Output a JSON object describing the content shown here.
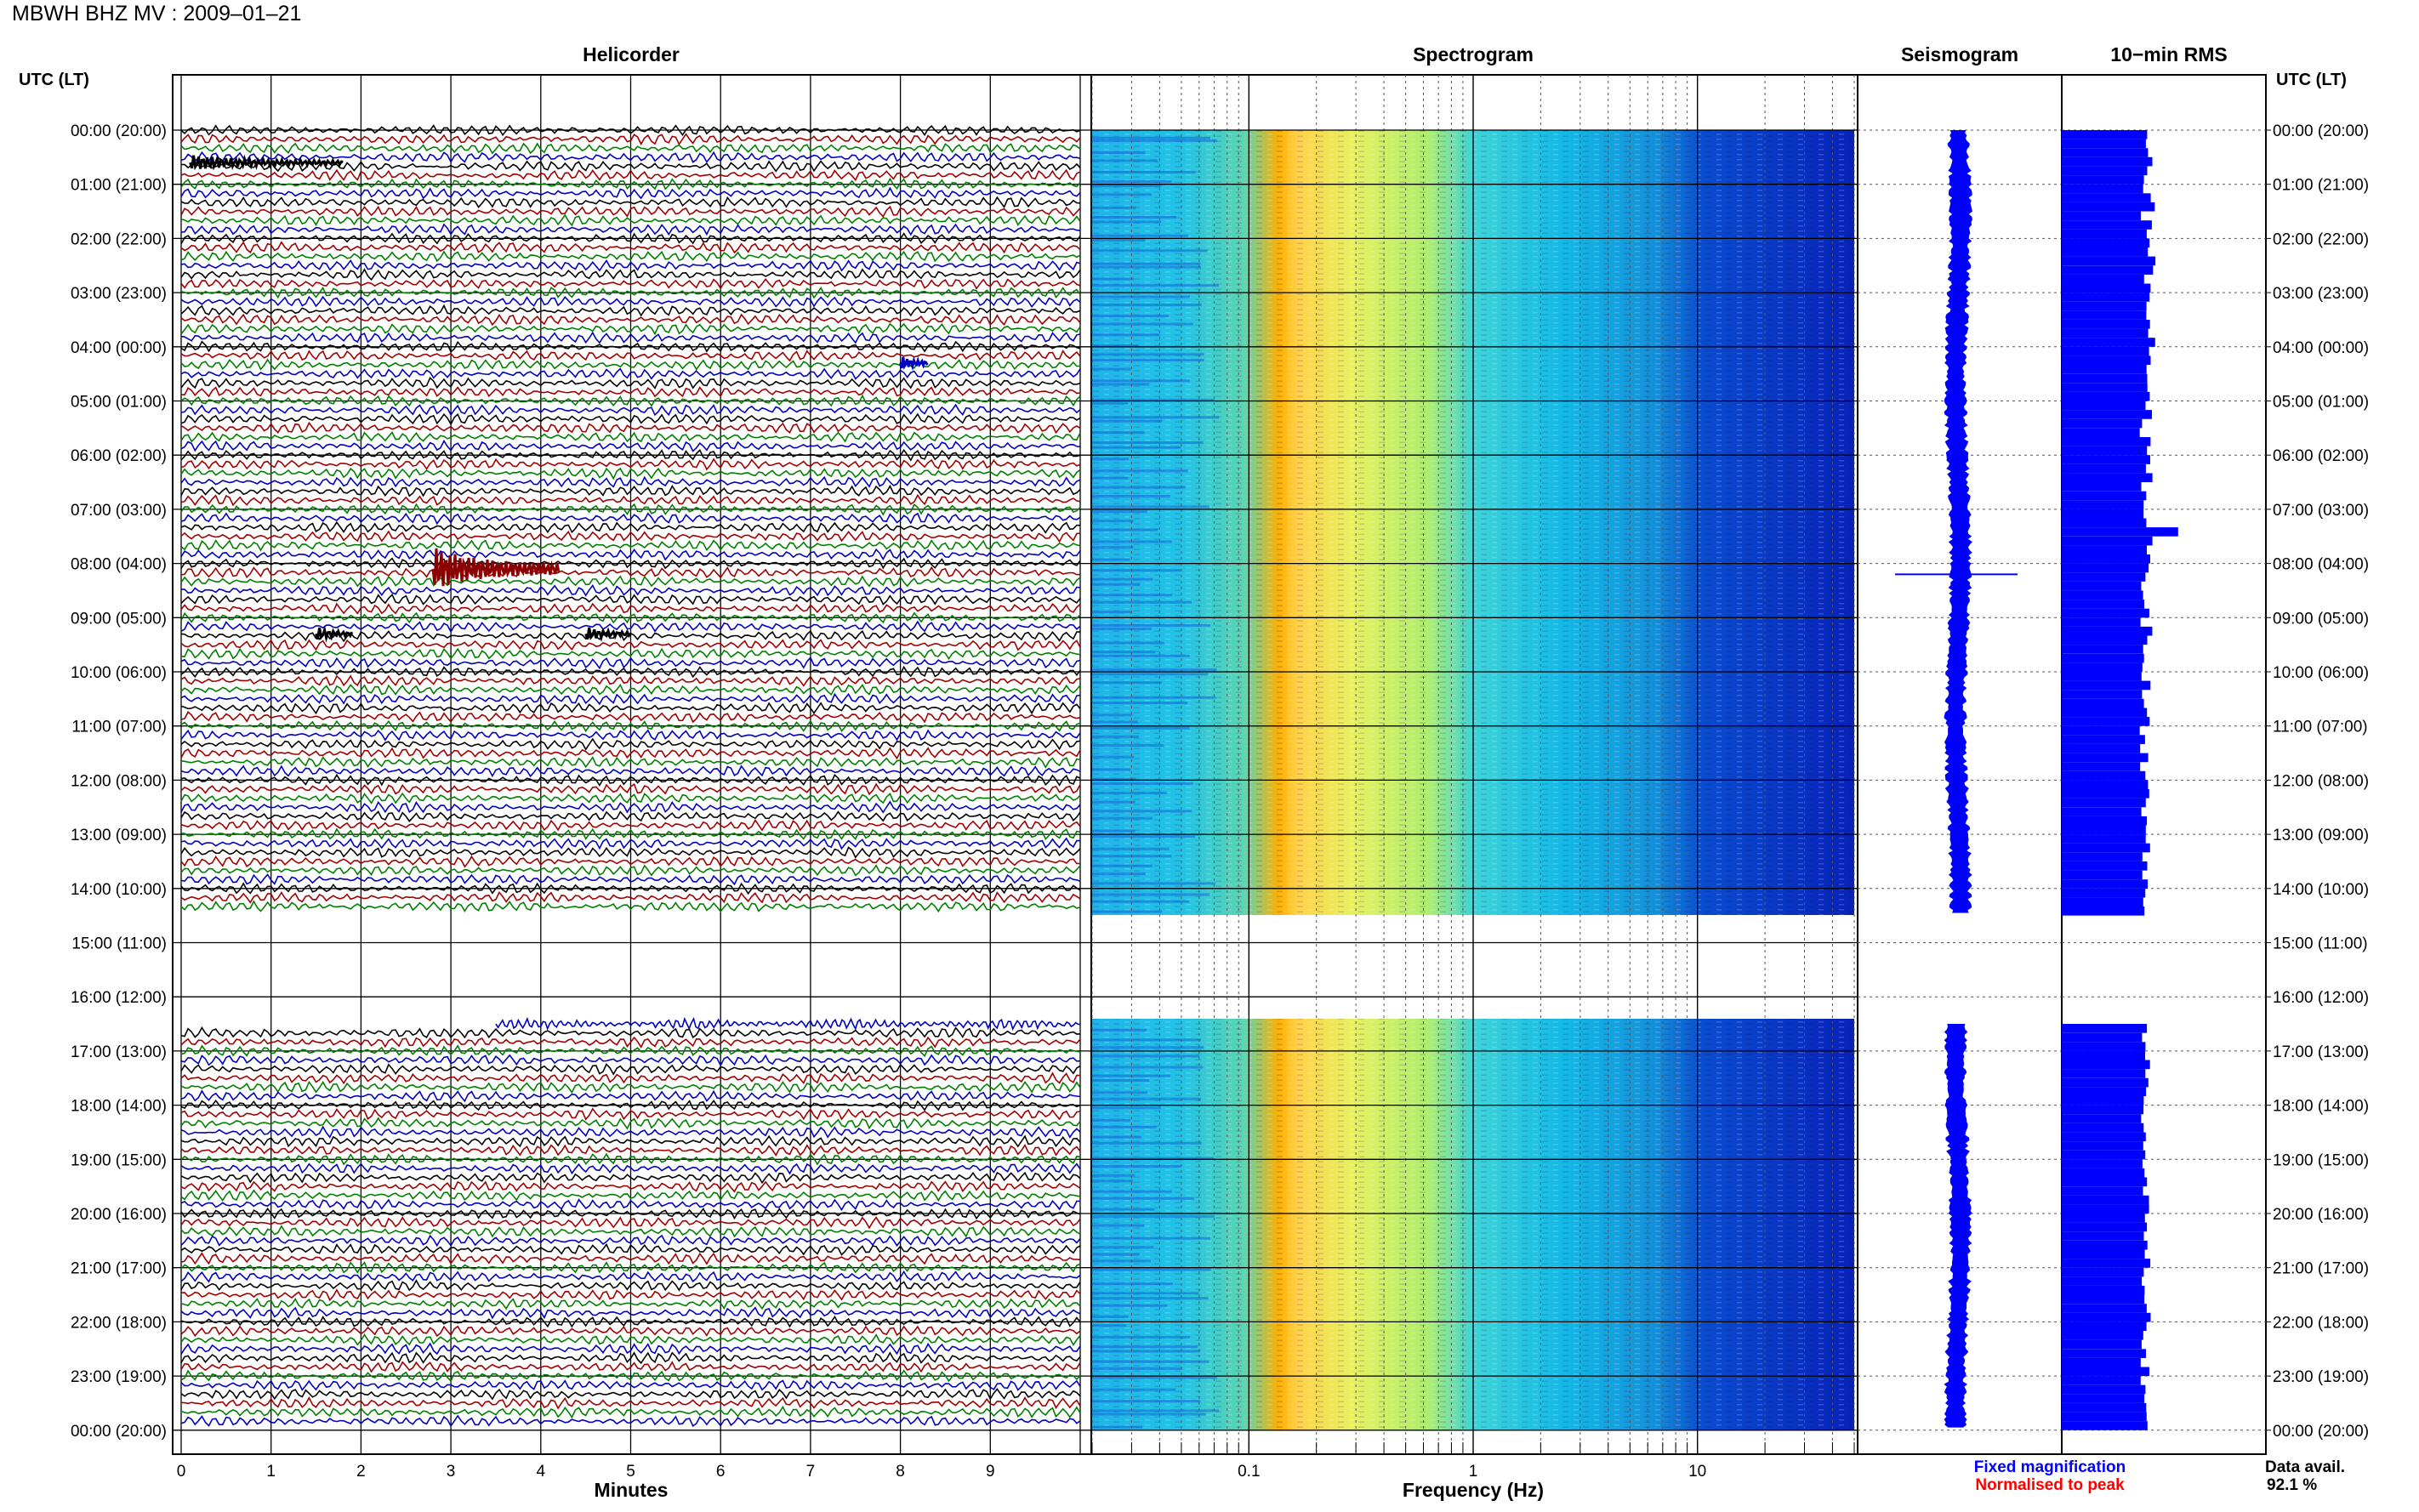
{
  "chart_data": {
    "type": "helicorder",
    "title": "MBWH BHZ MV : 2009–01–21",
    "panels": {
      "helicorder": "Helicorder",
      "spectrogram": "Spectrogram",
      "seismogram": "Seismogram",
      "rms": "10−min RMS"
    },
    "time_axis_title": "UTC (LT)",
    "time_labels": [
      "00:00 (20:00)",
      "01:00 (21:00)",
      "02:00 (22:00)",
      "03:00 (23:00)",
      "04:00 (00:00)",
      "05:00 (01:00)",
      "06:00 (02:00)",
      "07:00 (03:00)",
      "08:00 (04:00)",
      "09:00 (05:00)",
      "10:00 (06:00)",
      "11:00 (07:00)",
      "12:00 (08:00)",
      "13:00 (09:00)",
      "14:00 (10:00)",
      "15:00 (11:00)",
      "16:00 (12:00)",
      "17:00 (13:00)",
      "18:00 (14:00)",
      "19:00 (15:00)",
      "20:00 (16:00)",
      "21:00 (17:00)",
      "22:00 (18:00)",
      "23:00 (19:00)",
      "00:00 (20:00)"
    ],
    "data_gap_hours": [
      14.5,
      16.5
    ],
    "helicorder_x": {
      "label": "Minutes",
      "ticks": [
        "0",
        "1",
        "2",
        "3",
        "4",
        "5",
        "6",
        "7",
        "8",
        "9"
      ],
      "range": [
        0,
        10
      ]
    },
    "spectrogram_x": {
      "label": "Frequency (Hz)",
      "ticks": [
        "0.1",
        "1",
        "10"
      ],
      "scale": "log",
      "range": [
        0.02,
        50
      ]
    },
    "trace_colors": [
      "#000000",
      "#a00000",
      "#008000",
      "#0000c0"
    ],
    "events": [
      {
        "hour": 0.6,
        "minute_start": 0.1,
        "minute_end": 1.8,
        "color": "#000000"
      },
      {
        "hour": 4.3,
        "minute_start": 8.0,
        "minute_end": 8.3,
        "color": "#0000c0"
      },
      {
        "hour": 8.1,
        "minute_start": 2.8,
        "minute_end": 4.2,
        "color": "#8b0000"
      },
      {
        "hour": 9.3,
        "minute_start": 1.5,
        "minute_end": 1.9,
        "color": "#000000"
      },
      {
        "hour": 9.3,
        "minute_start": 4.5,
        "minute_end": 5.0,
        "color": "#000000"
      }
    ],
    "seismogram_spike_hour": 8.2,
    "rms_relative": [
      0.55,
      0.55,
      0.6,
      0.62,
      0.55,
      0.58,
      0.57,
      0.56,
      0.6,
      0.55,
      0.58,
      0.6,
      0.57,
      0.59,
      0.6,
      0.58,
      0.55,
      0.56,
      0.57,
      0.55,
      0.58,
      0.56,
      0.55,
      0.6,
      0.55,
      0.57,
      0.58,
      0.56,
      0.55,
      0.58,
      0.55,
      0.57,
      0.56,
      0.55,
      0.58,
      0.55,
      0.56,
      0.55,
      0.57,
      0.55,
      0.56,
      0.55,
      0.56,
      0.55,
      0.8,
      0.6,
      0.55,
      0.56,
      0.58,
      0.56,
      0.55,
      0.57,
      0.55,
      0.56,
      0.55,
      0.57,
      0.55,
      0.56,
      0.55,
      0.56,
      0.55,
      0.56,
      0.55,
      0.56,
      0.55,
      0.56,
      0.55,
      0.56,
      0.55,
      0.56,
      0.55,
      0.56,
      0.55,
      0.56,
      0.55,
      0.56,
      0.55,
      0.56,
      0.55,
      0.56,
      0.55,
      0.56,
      0.55,
      0.56,
      0.55,
      0.56,
      0.55,
      0.56,
      0.55,
      0.56,
      0.55,
      0.56,
      0.55,
      0.56,
      0.55,
      0.56,
      0.55,
      0.56,
      0.55,
      0.56,
      0.55,
      0.56,
      0.55,
      0.56,
      0.55,
      0.56,
      0.55,
      0.56,
      0.55,
      0.56,
      0.55,
      0.56,
      0.55,
      0.56,
      0.55,
      0.56,
      0.55,
      0.56,
      0.55,
      0.56,
      0.55,
      0.56,
      0.55,
      0.56,
      0.55,
      0.56,
      0.55,
      0.56,
      0.55,
      0.56,
      0.55,
      0.56,
      0.55,
      0.56,
      0.55,
      0.56,
      0.55,
      0.56,
      0.55,
      0.56,
      0.55,
      0.56
    ],
    "legend": {
      "fixed": "Fixed magnification",
      "normalised": "Normalised to peak",
      "fixed_color": "#0000ff",
      "normalised_color": "#ff0000"
    },
    "data_avail_label": "Data avail.",
    "data_avail_value": "92.1 %"
  }
}
